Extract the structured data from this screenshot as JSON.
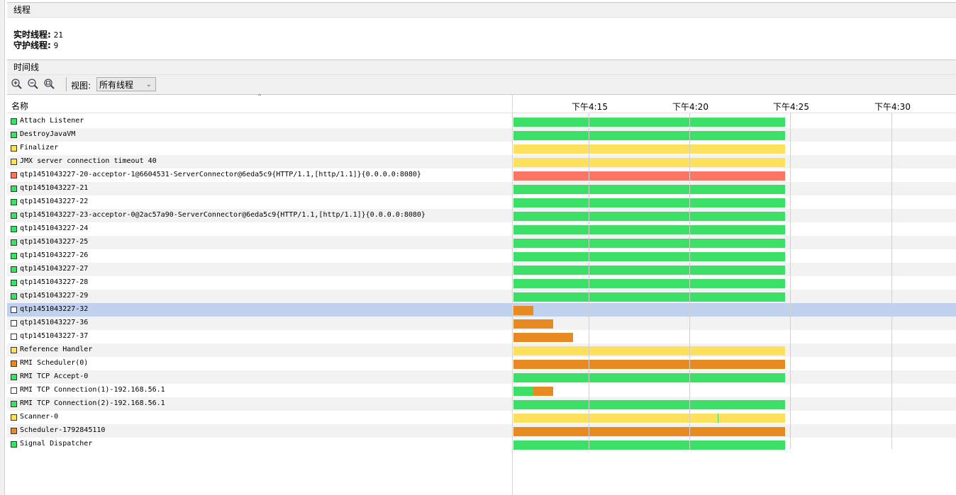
{
  "threads_section": {
    "title": "线程"
  },
  "summary": {
    "live_label": "实时线程:",
    "live_value": "21",
    "daemon_label": "守护线程:",
    "daemon_value": "9"
  },
  "timeline_section": {
    "title": "时间线"
  },
  "toolbar": {
    "zoom_in_icon": "zoom-in-icon",
    "zoom_out_icon": "zoom-out-icon",
    "zoom_fit_icon": "zoom-fit-icon",
    "view_label": "视图:",
    "view_value": "所有线程"
  },
  "table": {
    "name_header": "名称",
    "ticks": [
      "下午4:15",
      "下午4:20",
      "下午4:25",
      "下午4:30"
    ]
  },
  "colors": {
    "running": "#3de066",
    "sleeping": "#fde05b",
    "wait": "#e88a22",
    "monitor": "#fb7564",
    "finished": "#ffffff"
  },
  "threads": [
    {
      "name": "Attach Listener",
      "state": "running",
      "segments": [
        [
          "running",
          0,
          1
        ]
      ]
    },
    {
      "name": "DestroyJavaVM",
      "state": "running",
      "segments": [
        [
          "running",
          0,
          1
        ]
      ]
    },
    {
      "name": "Finalizer",
      "state": "sleeping",
      "segments": [
        [
          "sleeping",
          0,
          1
        ]
      ]
    },
    {
      "name": "JMX server connection timeout 40",
      "state": "sleeping",
      "segments": [
        [
          "sleeping",
          0,
          1
        ]
      ]
    },
    {
      "name": "qtp1451043227-20-acceptor-1@6604531-ServerConnector@6eda5c9{HTTP/1.1,[http/1.1]}{0.0.0.0:8080}",
      "state": "monitor",
      "segments": [
        [
          "monitor",
          0,
          1
        ]
      ]
    },
    {
      "name": "qtp1451043227-21",
      "state": "running",
      "segments": [
        [
          "running",
          0,
          1
        ]
      ]
    },
    {
      "name": "qtp1451043227-22",
      "state": "running",
      "segments": [
        [
          "running",
          0,
          1
        ]
      ]
    },
    {
      "name": "qtp1451043227-23-acceptor-0@2ac57a90-ServerConnector@6eda5c9{HTTP/1.1,[http/1.1]}{0.0.0.0:8080}",
      "state": "running",
      "segments": [
        [
          "running",
          0,
          1
        ]
      ]
    },
    {
      "name": "qtp1451043227-24",
      "state": "running",
      "segments": [
        [
          "running",
          0,
          1
        ]
      ]
    },
    {
      "name": "qtp1451043227-25",
      "state": "running",
      "segments": [
        [
          "running",
          0,
          1
        ]
      ]
    },
    {
      "name": "qtp1451043227-26",
      "state": "running",
      "segments": [
        [
          "running",
          0,
          1
        ]
      ]
    },
    {
      "name": "qtp1451043227-27",
      "state": "running",
      "segments": [
        [
          "running",
          0,
          1
        ]
      ]
    },
    {
      "name": "qtp1451043227-28",
      "state": "running",
      "segments": [
        [
          "running",
          0,
          1
        ]
      ]
    },
    {
      "name": "qtp1451043227-29",
      "state": "running",
      "segments": [
        [
          "running",
          0,
          1
        ]
      ]
    },
    {
      "name": "qtp1451043227-32",
      "state": "finished",
      "selected": true,
      "segments": [
        [
          "wait",
          0,
          0.073
        ]
      ]
    },
    {
      "name": "qtp1451043227-36",
      "state": "finished",
      "segments": [
        [
          "wait",
          0,
          0.146
        ]
      ]
    },
    {
      "name": "qtp1451043227-37",
      "state": "finished",
      "segments": [
        [
          "wait",
          0,
          0.219
        ]
      ]
    },
    {
      "name": "Reference Handler",
      "state": "sleeping",
      "segments": [
        [
          "sleeping",
          0,
          1
        ]
      ]
    },
    {
      "name": "RMI Scheduler(0)",
      "state": "wait",
      "segments": [
        [
          "wait",
          0,
          1
        ]
      ]
    },
    {
      "name": "RMI TCP Accept-0",
      "state": "running",
      "segments": [
        [
          "running",
          0,
          1
        ]
      ]
    },
    {
      "name": "RMI TCP Connection(1)-192.168.56.1",
      "state": "finished",
      "segments": [
        [
          "running",
          0,
          0.073
        ],
        [
          "wait",
          0.073,
          0.146
        ]
      ]
    },
    {
      "name": "RMI TCP Connection(2)-192.168.56.1",
      "state": "running",
      "segments": [
        [
          "running",
          0,
          1
        ]
      ]
    },
    {
      "name": "Scanner-0",
      "state": "sleeping",
      "segments": [
        [
          "sleeping",
          0,
          0.751
        ],
        [
          "running",
          0.751,
          0.755
        ],
        [
          "sleeping",
          0.755,
          1
        ]
      ]
    },
    {
      "name": "Scheduler-1792845110",
      "state": "wait",
      "segments": [
        [
          "wait",
          0,
          1
        ]
      ]
    },
    {
      "name": "Signal Dispatcher",
      "state": "running",
      "segments": [
        [
          "running",
          0,
          1
        ]
      ]
    }
  ]
}
